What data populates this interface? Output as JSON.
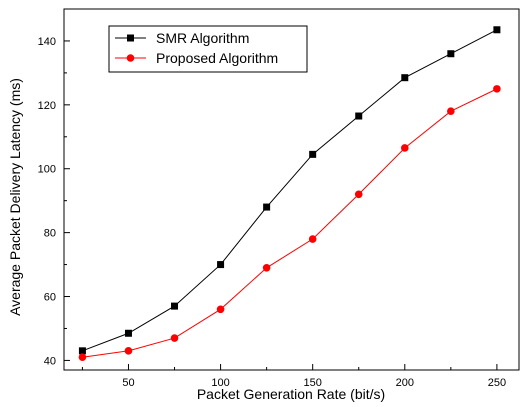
{
  "chart_data": {
    "type": "line",
    "xlabel": "Packet Generation Rate (bit/s)",
    "ylabel": "Average Packet Delivery Latency (ms)",
    "xlim": [
      15,
      262
    ],
    "ylim": [
      37,
      150
    ],
    "x_ticks": [
      50,
      100,
      150,
      200,
      250
    ],
    "y_ticks": [
      40,
      60,
      80,
      100,
      120,
      140
    ],
    "x": [
      25,
      50,
      75,
      100,
      125,
      150,
      175,
      200,
      225,
      250
    ],
    "series": [
      {
        "name": "SMR Algorithm",
        "color": "#000000",
        "marker": "square",
        "values": [
          43,
          48.5,
          57,
          70,
          88,
          104.5,
          116.5,
          128.5,
          136,
          143.5
        ]
      },
      {
        "name": "Proposed Algorithm",
        "color": "#ff0000",
        "marker": "circle",
        "values": [
          41,
          43,
          47,
          56,
          69,
          78,
          92,
          106.5,
          118,
          125
        ]
      }
    ],
    "legend_position": "top-left",
    "grid": false
  }
}
